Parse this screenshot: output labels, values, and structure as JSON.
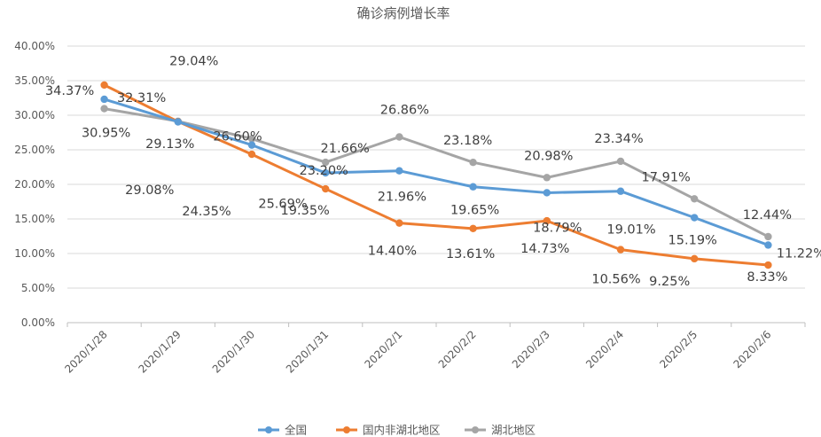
{
  "chart_data": {
    "type": "line",
    "title": "确诊病例增长率",
    "xlabel": "",
    "ylabel": "",
    "categories": [
      "2020/1/28",
      "2020/1/29",
      "2020/1/30",
      "2020/1/31",
      "2020/2/1",
      "2020/2/2",
      "2020/2/3",
      "2020/2/4",
      "2020/2/5",
      "2020/2/6"
    ],
    "ylim": [
      0,
      40
    ],
    "yticks": [
      "0.00%",
      "5.00%",
      "10.00%",
      "15.00%",
      "20.00%",
      "25.00%",
      "30.00%",
      "35.00%",
      "40.00%"
    ],
    "grid": true,
    "legend_position": "bottom",
    "series": [
      {
        "name": "全国",
        "color": "#5b9bd5",
        "values": [
          32.31,
          29.04,
          25.69,
          21.66,
          21.96,
          19.65,
          18.79,
          19.01,
          15.19,
          11.22
        ],
        "labels": [
          "32.31%",
          "29.04%",
          "25.69%",
          "21.66%",
          "21.96%",
          "19.65%",
          "18.79%",
          "19.01%",
          "15.19%",
          "11.22%"
        ]
      },
      {
        "name": "国内非湖北地区",
        "color": "#ed7d31",
        "values": [
          34.37,
          29.08,
          24.35,
          19.35,
          14.4,
          13.61,
          14.73,
          10.56,
          9.25,
          8.33
        ],
        "labels": [
          "34.37%",
          "29.08%",
          "24.35%",
          "19.35%",
          "14.40%",
          "13.61%",
          "14.73%",
          "10.56%",
          "9.25%",
          "8.33%"
        ]
      },
      {
        "name": "湖北地区",
        "color": "#a5a5a5",
        "values": [
          30.95,
          29.13,
          26.6,
          23.2,
          26.86,
          23.18,
          20.98,
          23.34,
          17.91,
          12.44
        ],
        "labels": [
          "30.95%",
          "29.13%",
          "26.60%",
          "23.20%",
          "26.86%",
          "23.18%",
          "20.98%",
          "23.34%",
          "17.91%",
          "12.44%"
        ]
      }
    ]
  }
}
